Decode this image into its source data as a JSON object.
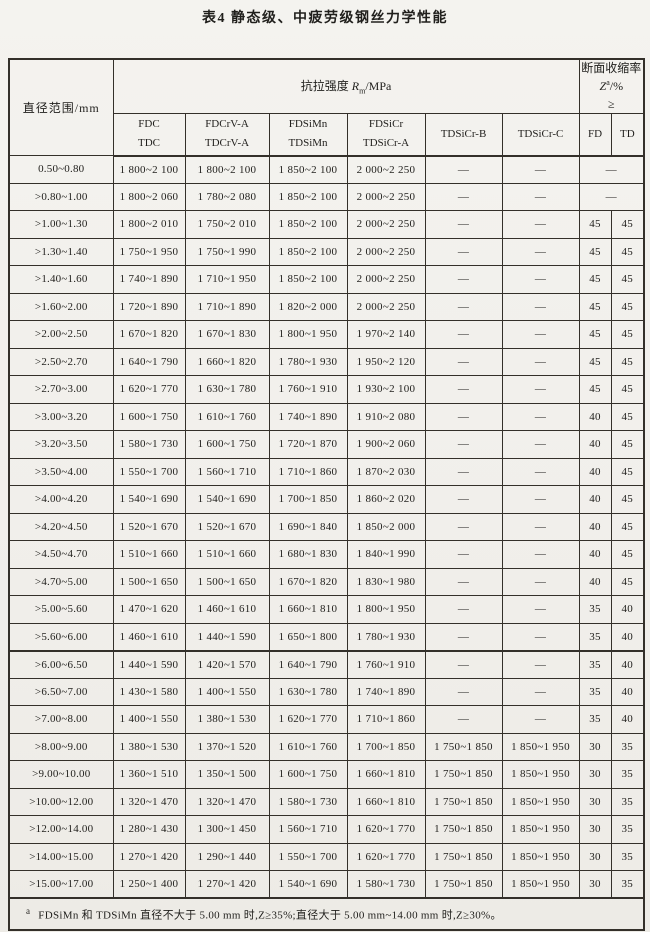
{
  "title": "表4  静态级、中疲劳级钢丝力学性能",
  "table": {
    "diameter_header": "直径范围/mm",
    "tensile": {
      "label": "抗拉强度 ",
      "symbol": "R",
      "sub": "m",
      "unit": "/MPa"
    },
    "reduction": {
      "line1": "断面收缩率",
      "symbol": "Z",
      "sup": "a",
      "unit": "/%",
      "gte": "≥"
    },
    "subcols": [
      [
        "FDC",
        "TDC"
      ],
      [
        "FDCrV-A",
        "TDCrV-A"
      ],
      [
        "FDSiMn",
        "TDSiMn"
      ],
      [
        "FDSiCr",
        "TDSiCr-A"
      ],
      [
        "TDSiCr-B"
      ],
      [
        "TDSiCr-C"
      ],
      [
        "FD"
      ],
      [
        "TD"
      ]
    ],
    "rows": [
      {
        "d": "0.50~0.80",
        "v": [
          "1 800~2 100",
          "1 800~2 100",
          "1 850~2 100",
          "2 000~2 250",
          "—",
          "—"
        ],
        "merged": true,
        "fdtd": "—"
      },
      {
        "d": ">0.80~1.00",
        "v": [
          "1 800~2 060",
          "1 780~2 080",
          "1 850~2 100",
          "2 000~2 250",
          "—",
          "—"
        ],
        "merged": true,
        "fdtd": "—"
      },
      {
        "d": ">1.00~1.30",
        "v": [
          "1 800~2 010",
          "1 750~2 010",
          "1 850~2 100",
          "2 000~2 250",
          "—",
          "—"
        ],
        "fd": "45",
        "td": "45"
      },
      {
        "d": ">1.30~1.40",
        "v": [
          "1 750~1 950",
          "1 750~1 990",
          "1 850~2 100",
          "2 000~2 250",
          "—",
          "—"
        ],
        "fd": "45",
        "td": "45"
      },
      {
        "d": ">1.40~1.60",
        "v": [
          "1 740~1 890",
          "1 710~1 950",
          "1 850~2 100",
          "2 000~2 250",
          "—",
          "—"
        ],
        "fd": "45",
        "td": "45"
      },
      {
        "d": ">1.60~2.00",
        "v": [
          "1 720~1 890",
          "1 710~1 890",
          "1 820~2 000",
          "2 000~2 250",
          "—",
          "—"
        ],
        "fd": "45",
        "td": "45"
      },
      {
        "d": ">2.00~2.50",
        "v": [
          "1 670~1 820",
          "1 670~1 830",
          "1 800~1 950",
          "1 970~2 140",
          "—",
          "—"
        ],
        "fd": "45",
        "td": "45"
      },
      {
        "d": ">2.50~2.70",
        "v": [
          "1 640~1 790",
          "1 660~1 820",
          "1 780~1 930",
          "1 950~2 120",
          "—",
          "—"
        ],
        "fd": "45",
        "td": "45"
      },
      {
        "d": ">2.70~3.00",
        "v": [
          "1 620~1 770",
          "1 630~1 780",
          "1 760~1 910",
          "1 930~2 100",
          "—",
          "—"
        ],
        "fd": "45",
        "td": "45"
      },
      {
        "d": ">3.00~3.20",
        "v": [
          "1 600~1 750",
          "1 610~1 760",
          "1 740~1 890",
          "1 910~2 080",
          "—",
          "—"
        ],
        "fd": "40",
        "td": "45"
      },
      {
        "d": ">3.20~3.50",
        "v": [
          "1 580~1 730",
          "1 600~1 750",
          "1 720~1 870",
          "1 900~2 060",
          "—",
          "—"
        ],
        "fd": "40",
        "td": "45"
      },
      {
        "d": ">3.50~4.00",
        "v": [
          "1 550~1 700",
          "1 560~1 710",
          "1 710~1 860",
          "1 870~2 030",
          "—",
          "—"
        ],
        "fd": "40",
        "td": "45"
      },
      {
        "d": ">4.00~4.20",
        "v": [
          "1 540~1 690",
          "1 540~1 690",
          "1 700~1 850",
          "1 860~2 020",
          "—",
          "—"
        ],
        "fd": "40",
        "td": "45"
      },
      {
        "d": ">4.20~4.50",
        "v": [
          "1 520~1 670",
          "1 520~1 670",
          "1 690~1 840",
          "1 850~2 000",
          "—",
          "—"
        ],
        "fd": "40",
        "td": "45"
      },
      {
        "d": ">4.50~4.70",
        "v": [
          "1 510~1 660",
          "1 510~1 660",
          "1 680~1 830",
          "1 840~1 990",
          "—",
          "—"
        ],
        "fd": "40",
        "td": "45"
      },
      {
        "d": ">4.70~5.00",
        "v": [
          "1 500~1 650",
          "1 500~1 650",
          "1 670~1 820",
          "1 830~1 980",
          "—",
          "—"
        ],
        "fd": "40",
        "td": "45"
      },
      {
        "d": ">5.00~5.60",
        "v": [
          "1 470~1 620",
          "1 460~1 610",
          "1 660~1 810",
          "1 800~1 950",
          "—",
          "—"
        ],
        "fd": "35",
        "td": "40"
      },
      {
        "d": ">5.60~6.00",
        "v": [
          "1 460~1 610",
          "1 440~1 590",
          "1 650~1 800",
          "1 780~1 930",
          "—",
          "—"
        ],
        "fd": "35",
        "td": "40"
      },
      {
        "d": ">6.00~6.50",
        "v": [
          "1 440~1 590",
          "1 420~1 570",
          "1 640~1 790",
          "1 760~1 910",
          "—",
          "—"
        ],
        "fd": "35",
        "td": "40"
      },
      {
        "d": ">6.50~7.00",
        "v": [
          "1 430~1 580",
          "1 400~1 550",
          "1 630~1 780",
          "1 740~1 890",
          "—",
          "—"
        ],
        "fd": "35",
        "td": "40"
      },
      {
        "d": ">7.00~8.00",
        "v": [
          "1 400~1 550",
          "1 380~1 530",
          "1 620~1 770",
          "1 710~1 860",
          "—",
          "—"
        ],
        "fd": "35",
        "td": "40"
      },
      {
        "d": ">8.00~9.00",
        "v": [
          "1 380~1 530",
          "1 370~1 520",
          "1 610~1 760",
          "1 700~1 850",
          "1 750~1 850",
          "1 850~1 950"
        ],
        "fd": "30",
        "td": "35"
      },
      {
        "d": ">9.00~10.00",
        "v": [
          "1 360~1 510",
          "1 350~1 500",
          "1 600~1 750",
          "1 660~1 810",
          "1 750~1 850",
          "1 850~1 950"
        ],
        "fd": "30",
        "td": "35"
      },
      {
        "d": ">10.00~12.00",
        "v": [
          "1 320~1 470",
          "1 320~1 470",
          "1 580~1 730",
          "1 660~1 810",
          "1 750~1 850",
          "1 850~1 950"
        ],
        "fd": "30",
        "td": "35"
      },
      {
        "d": ">12.00~14.00",
        "v": [
          "1 280~1 430",
          "1 300~1 450",
          "1 560~1 710",
          "1 620~1 770",
          "1 750~1 850",
          "1 850~1 950"
        ],
        "fd": "30",
        "td": "35"
      },
      {
        "d": ">14.00~15.00",
        "v": [
          "1 270~1 420",
          "1 290~1 440",
          "1 550~1 700",
          "1 620~1 770",
          "1 750~1 850",
          "1 850~1 950"
        ],
        "fd": "30",
        "td": "35"
      },
      {
        "d": ">15.00~17.00",
        "v": [
          "1 250~1 400",
          "1 270~1 420",
          "1 540~1 690",
          "1 580~1 730",
          "1 750~1 850",
          "1 850~1 950"
        ],
        "fd": "30",
        "td": "35"
      }
    ]
  },
  "footnote": {
    "marker": "a",
    "text": "FDSiMn 和 TDSiMn 直径不大于 5.00 mm 时,Z≥35%;直径大于 5.00 mm~14.00 mm 时,Z≥30%。"
  }
}
